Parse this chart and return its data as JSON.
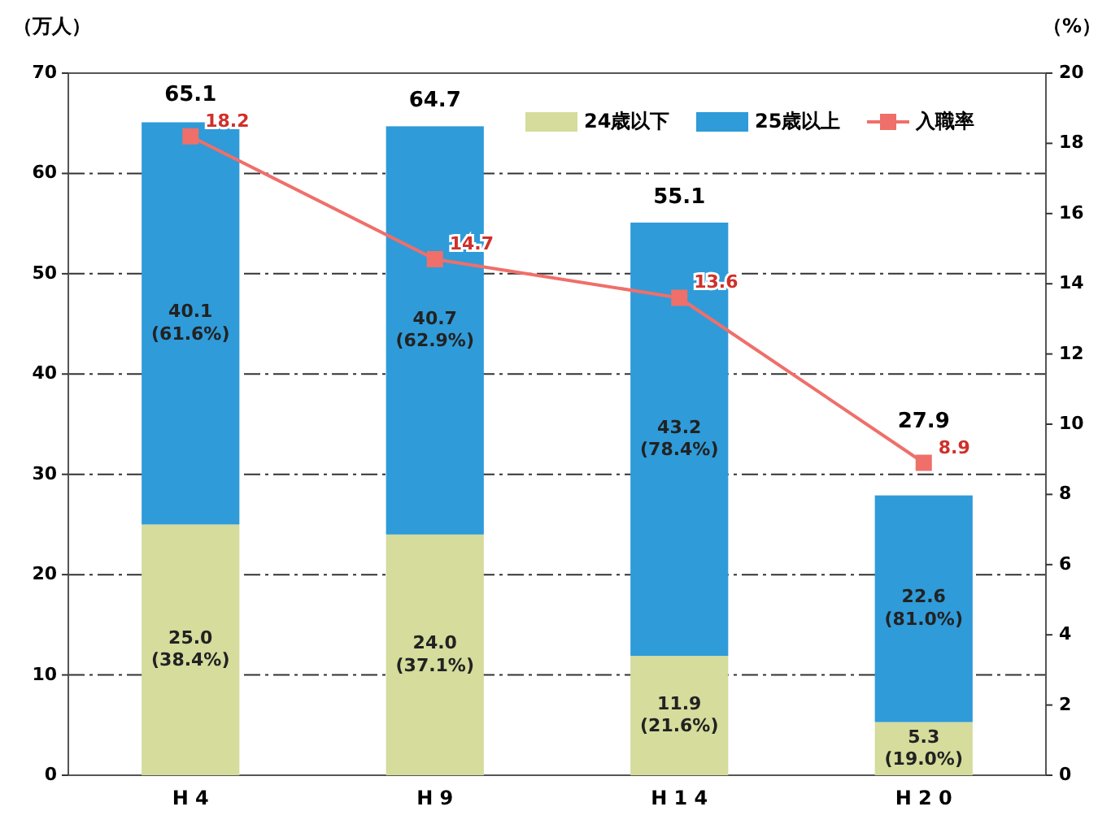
{
  "chart_data": {
    "type": "bar",
    "stacked": true,
    "ylabel": "（万人）",
    "y2label": "（%）",
    "categories": [
      "H 4",
      "H 9",
      "H 1 4",
      "H 2 0"
    ],
    "series": [
      {
        "name": "24歳以下",
        "color": "#d5dc9c",
        "values": [
          25.0,
          24.0,
          11.9,
          5.3
        ],
        "value_labels": [
          "25.0\n(38.4%)",
          "24.0\n(37.1%)",
          "11.9\n(21.6%)",
          "5.3\n(19.0%)"
        ]
      },
      {
        "name": "25歳以上",
        "color": "#2f9bd9",
        "values": [
          40.1,
          40.7,
          43.2,
          22.6
        ],
        "value_labels": [
          "40.1\n(61.6%)",
          "40.7\n(62.9%)",
          "43.2\n(78.4%)",
          "22.6\n(81.0%)"
        ]
      },
      {
        "name": "入職率",
        "type": "line",
        "axis": "y2",
        "color": "#ef6f6a",
        "marker": "square",
        "values": [
          18.2,
          14.7,
          13.6,
          8.9
        ],
        "value_labels": [
          "18.2",
          "14.7",
          "13.6",
          "8.9"
        ]
      }
    ],
    "totals": [
      "65.1",
      "64.7",
      "55.1",
      "27.9"
    ],
    "ylim": [
      0,
      70
    ],
    "yticks": [
      0,
      10,
      20,
      30,
      40,
      50,
      60,
      70
    ],
    "y2lim": [
      0,
      20
    ],
    "y2ticks": [
      0,
      2,
      4,
      6,
      8,
      10,
      12,
      14,
      16,
      18,
      20
    ],
    "grid": "y",
    "legend": "top right"
  }
}
